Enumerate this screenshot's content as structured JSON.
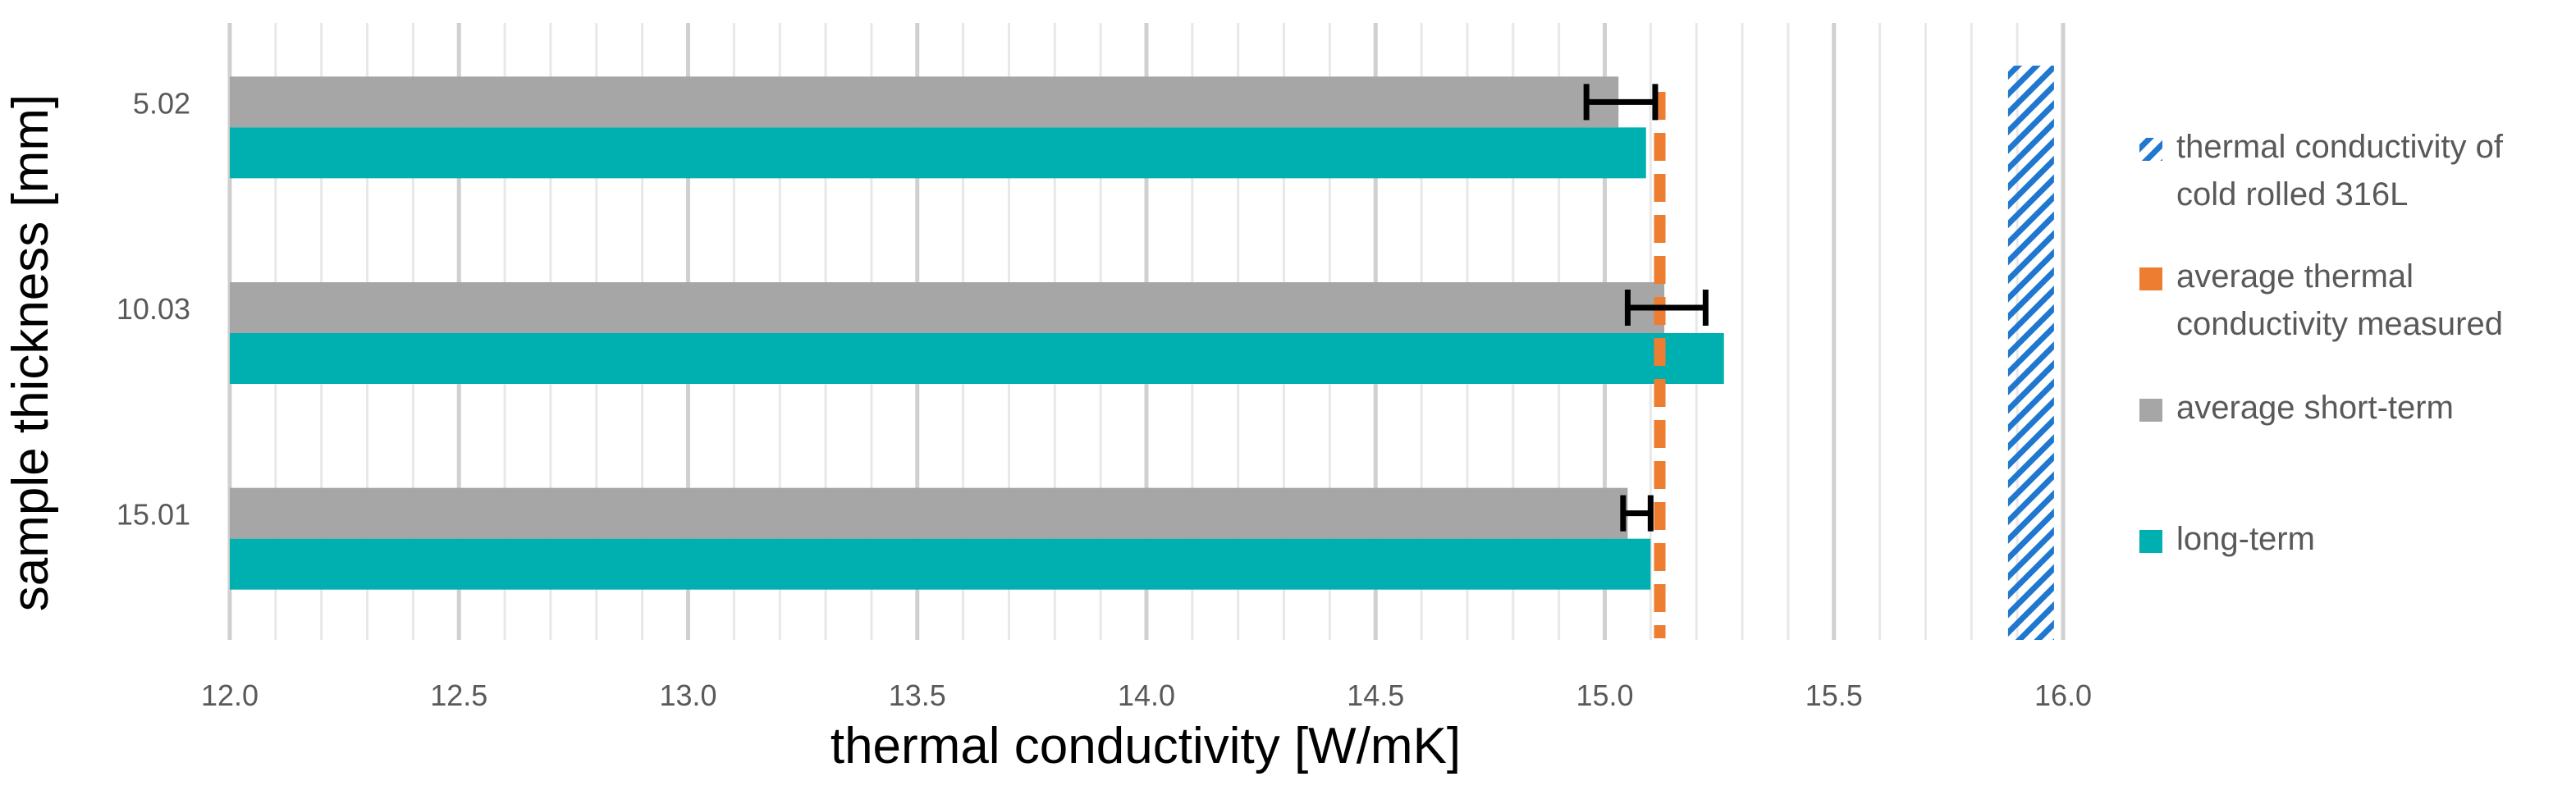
{
  "chart_data": {
    "type": "bar",
    "orientation": "horizontal",
    "title": "",
    "xlabel": "thermal conductivity [W/mK]",
    "ylabel": "sample thickness [mm]",
    "xlim": [
      12.0,
      16.0
    ],
    "x_ticks": [
      "12.0",
      "12.5",
      "13.0",
      "13.5",
      "14.0",
      "14.5",
      "15.0",
      "15.5",
      "16.0"
    ],
    "grid": "vertical",
    "categories": [
      "5.02",
      "10.03",
      "15.01"
    ],
    "series": [
      {
        "name": "average short-term",
        "color": "#a6a6a6",
        "values": [
          15.03,
          15.13,
          15.05
        ],
        "error_low": [
          14.96,
          15.05,
          15.04
        ],
        "error_high": [
          15.11,
          15.22,
          15.1
        ]
      },
      {
        "name": "long-term",
        "color": "#00b0b0",
        "values": [
          15.09,
          15.26,
          15.1
        ]
      }
    ],
    "reference_lines": [
      {
        "name": "average thermal conductivity measured",
        "value": 15.12,
        "color": "#ed7d31",
        "style": "dashed"
      },
      {
        "name": "thermal conductivity of cold rolled 316L",
        "value": 15.93,
        "color": "#1f77d0",
        "style": "hatched"
      }
    ],
    "legend": {
      "position": "right",
      "entries": [
        {
          "label_line1": "thermal conductivity of",
          "label_line2": "cold rolled 316L",
          "color": "#1f77d0",
          "marker": "hatch"
        },
        {
          "label_line1": "average thermal",
          "label_line2": "conductivity measured",
          "color": "#ed7d31",
          "marker": "square"
        },
        {
          "label_line1": "average short-term",
          "label_line2": "",
          "color": "#a6a6a6",
          "marker": "square"
        },
        {
          "label_line1": "long-term",
          "label_line2": "",
          "color": "#00b0b0",
          "marker": "square"
        }
      ]
    }
  }
}
